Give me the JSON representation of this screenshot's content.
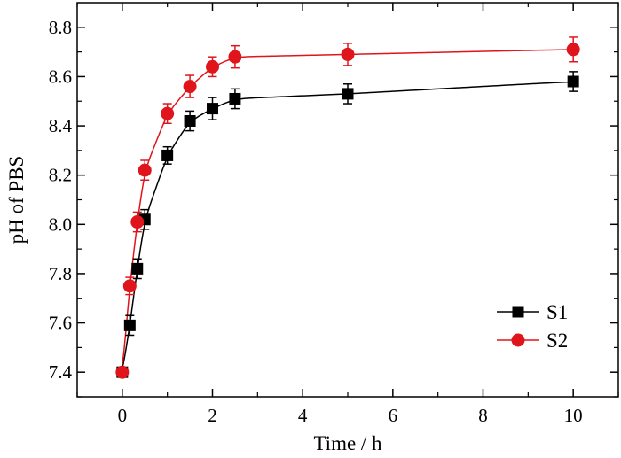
{
  "chart_data": {
    "type": "line",
    "xlabel": "Time / h",
    "ylabel": "pH of PBS",
    "xlim": [
      -1,
      11
    ],
    "ylim": [
      7.3,
      8.9
    ],
    "xticks": [
      0,
      2,
      4,
      6,
      8,
      10
    ],
    "yticks": [
      7.4,
      7.6,
      7.8,
      8.0,
      8.2,
      8.4,
      8.6,
      8.8
    ],
    "xtick_labels": [
      "0",
      "2",
      "4",
      "6",
      "8",
      "10"
    ],
    "ytick_labels": [
      "7.4",
      "7.6",
      "7.8",
      "8.0",
      "8.2",
      "8.4",
      "8.6",
      "8.8"
    ],
    "grid": false,
    "legend_position": "bottom-right",
    "series": [
      {
        "name": "S1",
        "color": "#000000",
        "marker": "square",
        "x": [
          0,
          0.167,
          0.333,
          0.5,
          1,
          1.5,
          2,
          2.5,
          5,
          10
        ],
        "y": [
          7.4,
          7.59,
          7.82,
          8.02,
          8.28,
          8.42,
          8.47,
          8.51,
          8.53,
          8.58
        ],
        "err": [
          0.015,
          0.04,
          0.04,
          0.04,
          0.035,
          0.04,
          0.045,
          0.04,
          0.04,
          0.04
        ]
      },
      {
        "name": "S2",
        "color": "#e0151b",
        "marker": "circle",
        "x": [
          0,
          0.167,
          0.333,
          0.5,
          1,
          1.5,
          2,
          2.5,
          5,
          10
        ],
        "y": [
          7.4,
          7.75,
          8.01,
          8.22,
          8.45,
          8.56,
          8.64,
          8.68,
          8.69,
          8.71
        ],
        "err": [
          0.015,
          0.035,
          0.04,
          0.04,
          0.04,
          0.045,
          0.04,
          0.045,
          0.045,
          0.05
        ]
      }
    ]
  }
}
